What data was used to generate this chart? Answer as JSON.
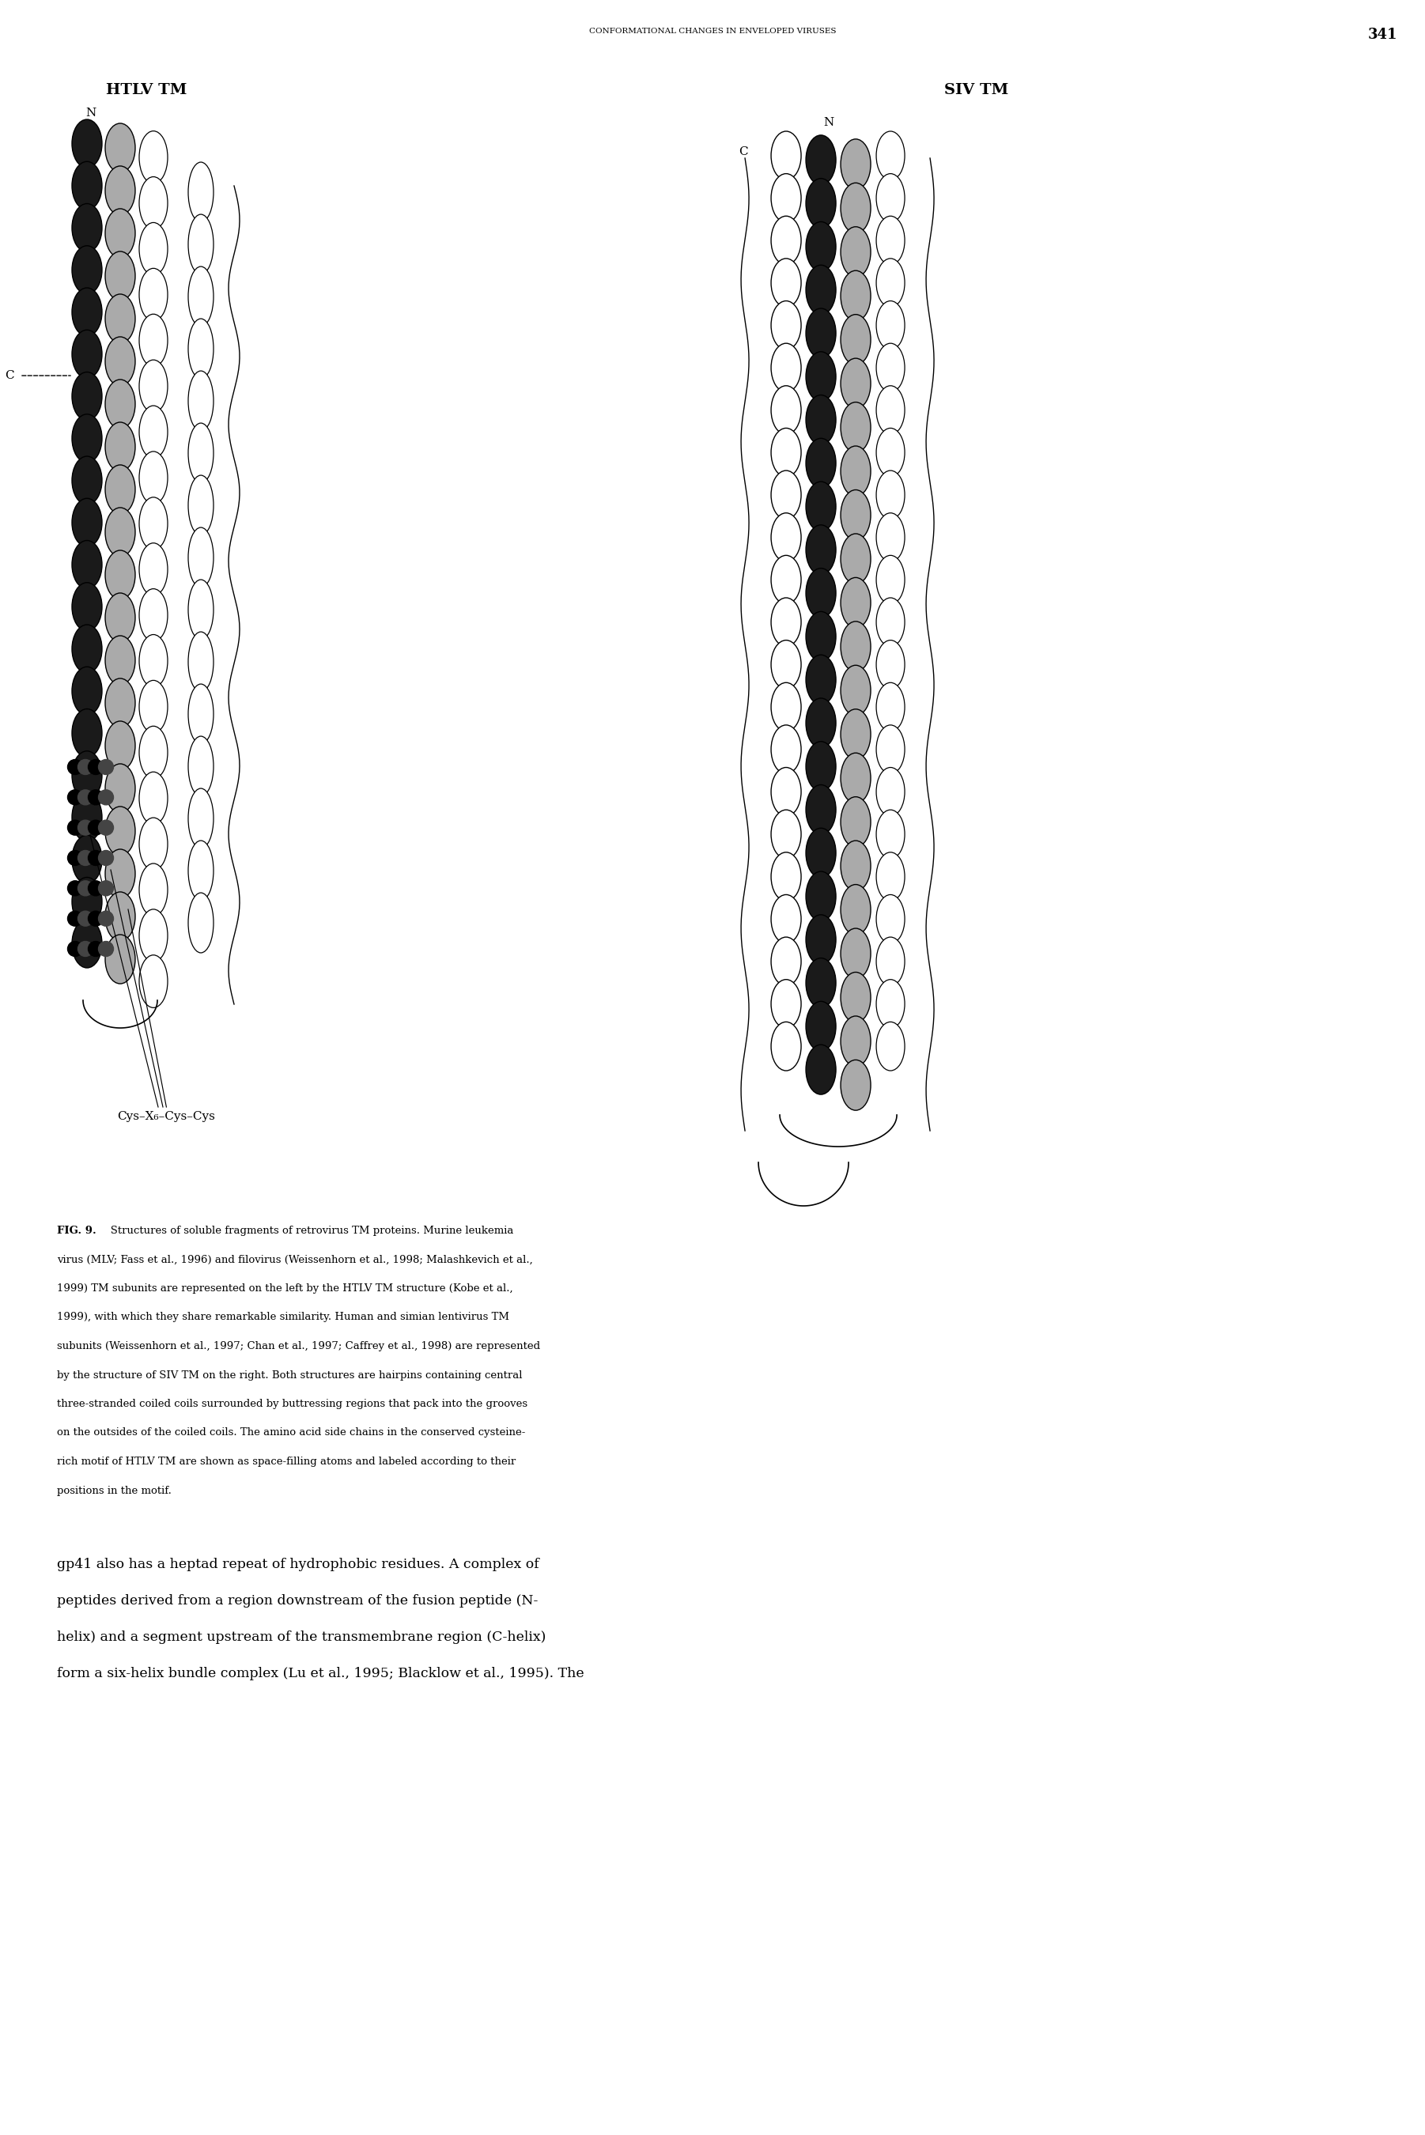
{
  "page_width": 18.02,
  "page_height": 27.0,
  "background_color": "#ffffff",
  "header_text": "CONFORMATIONAL CHANGES IN ENVELOPED VIRUSES",
  "page_number": "341",
  "header_fontsize": 7.5,
  "page_number_fontsize": 13,
  "htlv_title": "HTLV TM",
  "siv_title": "SIV TM",
  "title_fontsize": 14,
  "fig_label": "FIG. 9.",
  "caption_fontsize": 9.5,
  "body_fontsize": 12.5,
  "cys_label": "Cys–X₆–Cys–Cys"
}
